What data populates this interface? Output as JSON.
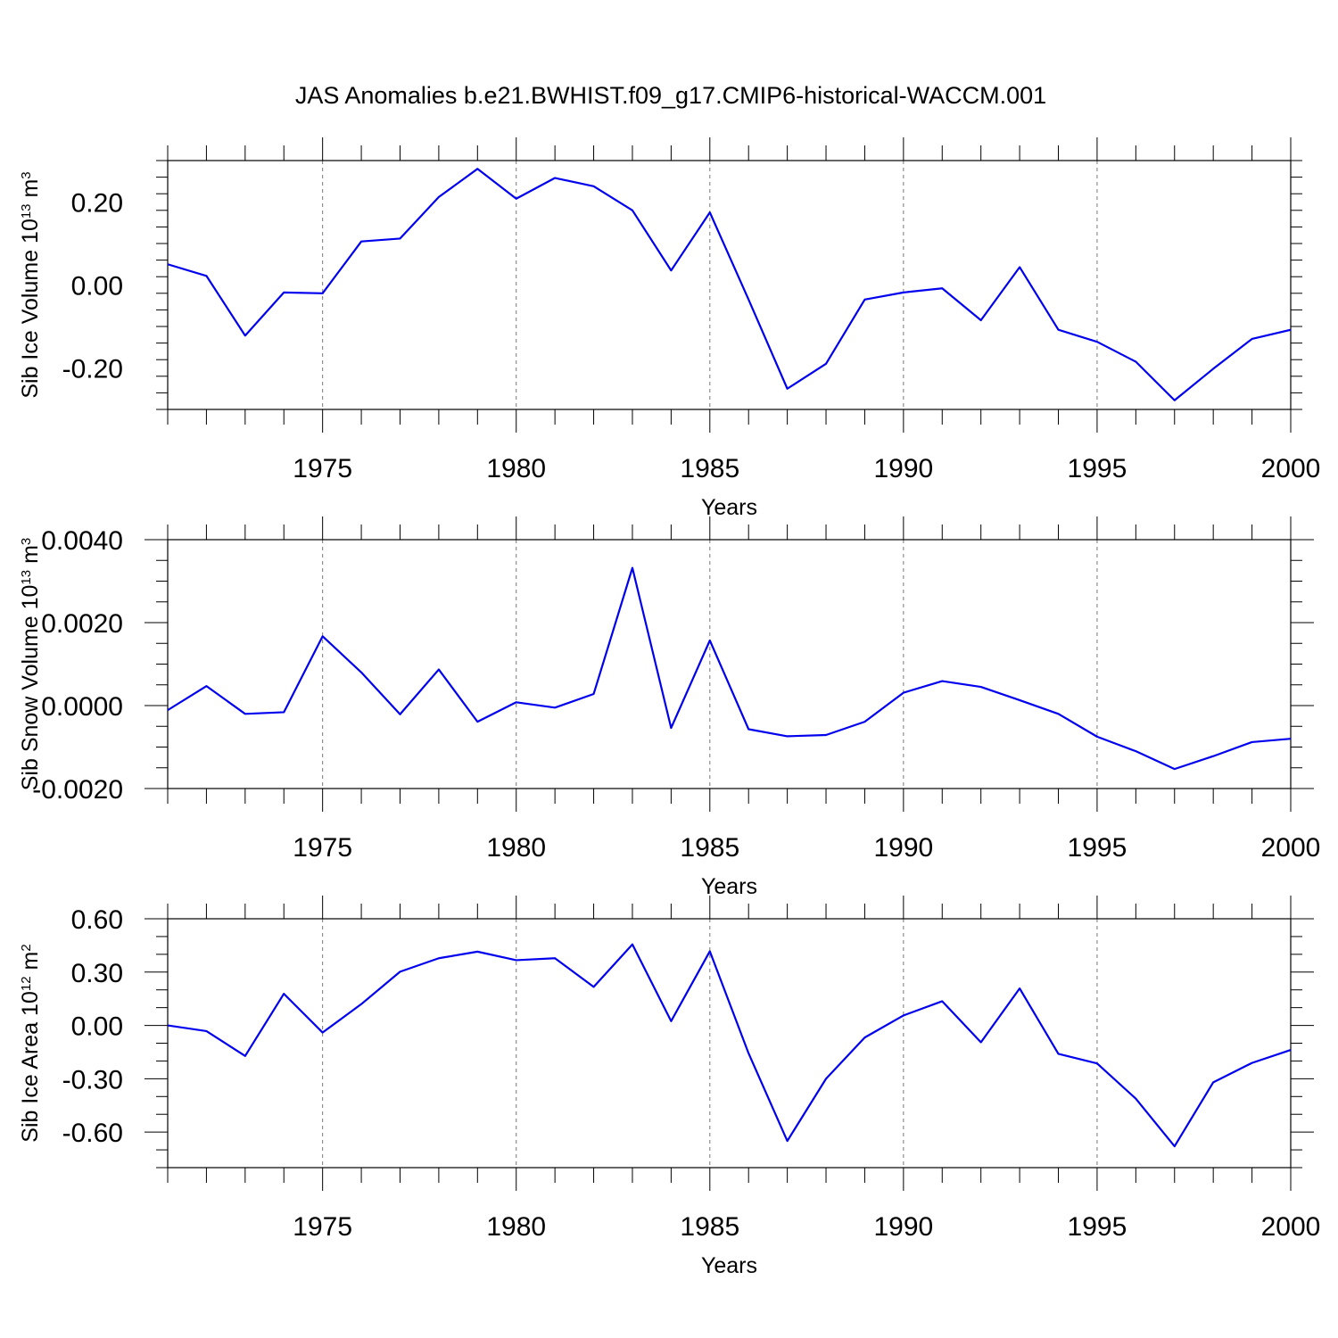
{
  "title": "JAS Anomalies b.e21.BWHIST.f09_g17.CMIP6-historical-WACCM.001",
  "line_color": "#0000ee",
  "chart_data": [
    {
      "type": "line",
      "title": "JAS Anomalies b.e21.BWHIST.f09_g17.CMIP6-historical-WACCM.001",
      "xlabel": "Years",
      "ylabel": "Sib Ice Volume 10",
      "ylabel_sup": "13",
      "ylabel_unit": " m",
      "ylabel_unit_sup": "3",
      "xlim": [
        1971,
        2000
      ],
      "ylim": [
        -0.3,
        0.3
      ],
      "x_major_ticks": [
        1975,
        1980,
        1985,
        1990,
        1995,
        2000
      ],
      "x_tick_labels": [
        "1975",
        "1980",
        "1985",
        "1990",
        "1995",
        "2000"
      ],
      "y_major_ticks": [
        -0.2,
        0.0,
        0.2
      ],
      "y_tick_labels": [
        "-0.20",
        "0.00",
        "0.20"
      ],
      "y_minor_step": 0.04,
      "grid": "vertical dashed at major x ticks",
      "x": [
        1971,
        1972,
        1973,
        1974,
        1975,
        1976,
        1977,
        1978,
        1979,
        1980,
        1981,
        1982,
        1983,
        1984,
        1985,
        1986,
        1987,
        1988,
        1989,
        1990,
        1991,
        1992,
        1993,
        1994,
        1995,
        1996,
        1997,
        1998,
        1999,
        2000
      ],
      "series": [
        {
          "name": "Sib Ice Volume",
          "values": [
            0.05,
            0.022,
            -0.122,
            -0.018,
            -0.02,
            0.105,
            0.112,
            0.212,
            0.28,
            0.208,
            0.258,
            0.238,
            0.18,
            0.035,
            0.175,
            -0.035,
            -0.25,
            -0.19,
            -0.035,
            -0.018,
            -0.008,
            -0.085,
            0.043,
            -0.108,
            -0.137,
            -0.185,
            -0.278,
            -0.202,
            -0.13,
            -0.108
          ]
        }
      ]
    },
    {
      "type": "line",
      "xlabel": "Years",
      "ylabel": "Sib Snow Volume 10",
      "ylabel_sup": "13",
      "ylabel_unit": " m",
      "ylabel_unit_sup": "3",
      "xlim": [
        1971,
        2000
      ],
      "ylim": [
        -0.002,
        0.004
      ],
      "x_major_ticks": [
        1975,
        1980,
        1985,
        1990,
        1995,
        2000
      ],
      "x_tick_labels": [
        "1975",
        "1980",
        "1985",
        "1990",
        "1995",
        "2000"
      ],
      "y_major_ticks": [
        -0.002,
        0.0,
        0.002,
        0.004
      ],
      "y_tick_labels": [
        "-0.0020",
        "0.0000",
        "0.0020",
        "0.0040"
      ],
      "y_minor_step": 0.0005,
      "grid": "vertical dashed at major x ticks",
      "x": [
        1971,
        1972,
        1973,
        1974,
        1975,
        1976,
        1977,
        1978,
        1979,
        1980,
        1981,
        1982,
        1983,
        1984,
        1985,
        1986,
        1987,
        1988,
        1989,
        1990,
        1991,
        1992,
        1993,
        1994,
        1995,
        1996,
        1997,
        1998,
        1999,
        2000
      ],
      "series": [
        {
          "name": "Sib Snow Volume",
          "values": [
            -0.00011,
            0.00047,
            -0.0002,
            -0.00016,
            0.00167,
            0.0008,
            -0.00021,
            0.00087,
            -0.00039,
            8e-05,
            -5e-05,
            0.00028,
            0.00332,
            -0.00054,
            0.00157,
            -0.00057,
            -0.00074,
            -0.00071,
            -0.00039,
            0.00031,
            0.00059,
            0.00045,
            0.00013,
            -0.0002,
            -0.00075,
            -0.0011,
            -0.00153,
            -0.00122,
            -0.00088,
            -0.0008
          ]
        }
      ]
    },
    {
      "type": "line",
      "xlabel": "Years",
      "ylabel": "Sib Ice Area 10",
      "ylabel_sup": "12",
      "ylabel_unit": " m",
      "ylabel_unit_sup": "2",
      "xlim": [
        1971,
        2000
      ],
      "ylim": [
        -0.8,
        0.6
      ],
      "x_major_ticks": [
        1975,
        1980,
        1985,
        1990,
        1995,
        2000
      ],
      "x_tick_labels": [
        "1975",
        "1980",
        "1985",
        "1990",
        "1995",
        "2000"
      ],
      "y_major_ticks": [
        -0.6,
        -0.3,
        0.0,
        0.3,
        0.6
      ],
      "y_tick_labels": [
        "-0.60",
        "-0.30",
        "0.00",
        "0.30",
        "0.60"
      ],
      "y_minor_step": 0.1,
      "grid": "vertical dashed at major x ticks",
      "x": [
        1971,
        1972,
        1973,
        1974,
        1975,
        1976,
        1977,
        1978,
        1979,
        1980,
        1981,
        1982,
        1983,
        1984,
        1985,
        1986,
        1987,
        1988,
        1989,
        1990,
        1991,
        1992,
        1993,
        1994,
        1995,
        1996,
        1997,
        1998,
        1999,
        2000
      ],
      "series": [
        {
          "name": "Sib Ice Area",
          "values": [
            0.0,
            -0.032,
            -0.172,
            0.178,
            -0.04,
            0.12,
            0.302,
            0.378,
            0.415,
            0.367,
            0.378,
            0.217,
            0.456,
            0.024,
            0.417,
            -0.157,
            -0.65,
            -0.3,
            -0.068,
            0.056,
            0.136,
            -0.095,
            0.208,
            -0.16,
            -0.214,
            -0.412,
            -0.68,
            -0.32,
            -0.211,
            -0.138
          ]
        }
      ]
    }
  ]
}
